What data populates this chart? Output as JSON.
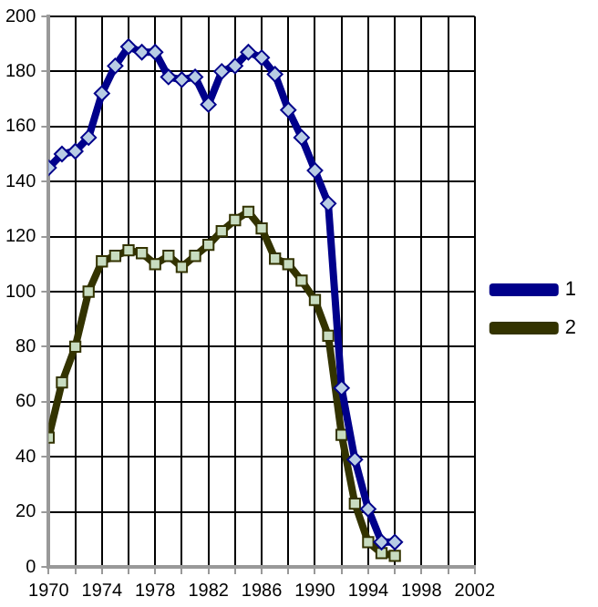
{
  "chart_data": {
    "type": "line",
    "x": [
      1970,
      1971,
      1972,
      1973,
      1974,
      1975,
      1976,
      1977,
      1978,
      1979,
      1980,
      1981,
      1982,
      1983,
      1984,
      1985,
      1986,
      1987,
      1988,
      1989,
      1990,
      1991,
      1992,
      1993,
      1994,
      1995,
      1996
    ],
    "series": [
      {
        "name": "1",
        "color": "#00008b",
        "marker": "diamond",
        "values": [
          145,
          150,
          151,
          156,
          172,
          182,
          189,
          187,
          187,
          178,
          177,
          178,
          168,
          180,
          182,
          187,
          185,
          179,
          166,
          156,
          144,
          132,
          65,
          39,
          21,
          9,
          9
        ]
      },
      {
        "name": "2",
        "color": "#333300",
        "marker": "square",
        "values": [
          47,
          67,
          80,
          100,
          111,
          113,
          115,
          114,
          110,
          113,
          109,
          113,
          117,
          122,
          126,
          129,
          123,
          112,
          110,
          104,
          97,
          84,
          48,
          23,
          9,
          5,
          4
        ]
      }
    ],
    "xlim": [
      1970,
      2002
    ],
    "xticks": [
      1970,
      {
        "value": 1972,
        "label": null
      },
      1974,
      {
        "value": 1976,
        "label": null
      },
      1978,
      {
        "value": 1980,
        "label": null
      },
      1982,
      {
        "value": 1984,
        "label": null
      },
      1986,
      {
        "value": 1988,
        "label": null
      },
      1990,
      {
        "value": 1992,
        "label": null
      },
      1994,
      {
        "value": 1996,
        "label": null
      },
      1998,
      {
        "value": 2000,
        "label": null
      },
      2002
    ],
    "ylim": [
      0,
      200
    ],
    "yticks": [
      0,
      20,
      40,
      60,
      80,
      100,
      120,
      140,
      160,
      180,
      200
    ],
    "grid": true,
    "legend": "right",
    "line_style": "solid"
  }
}
